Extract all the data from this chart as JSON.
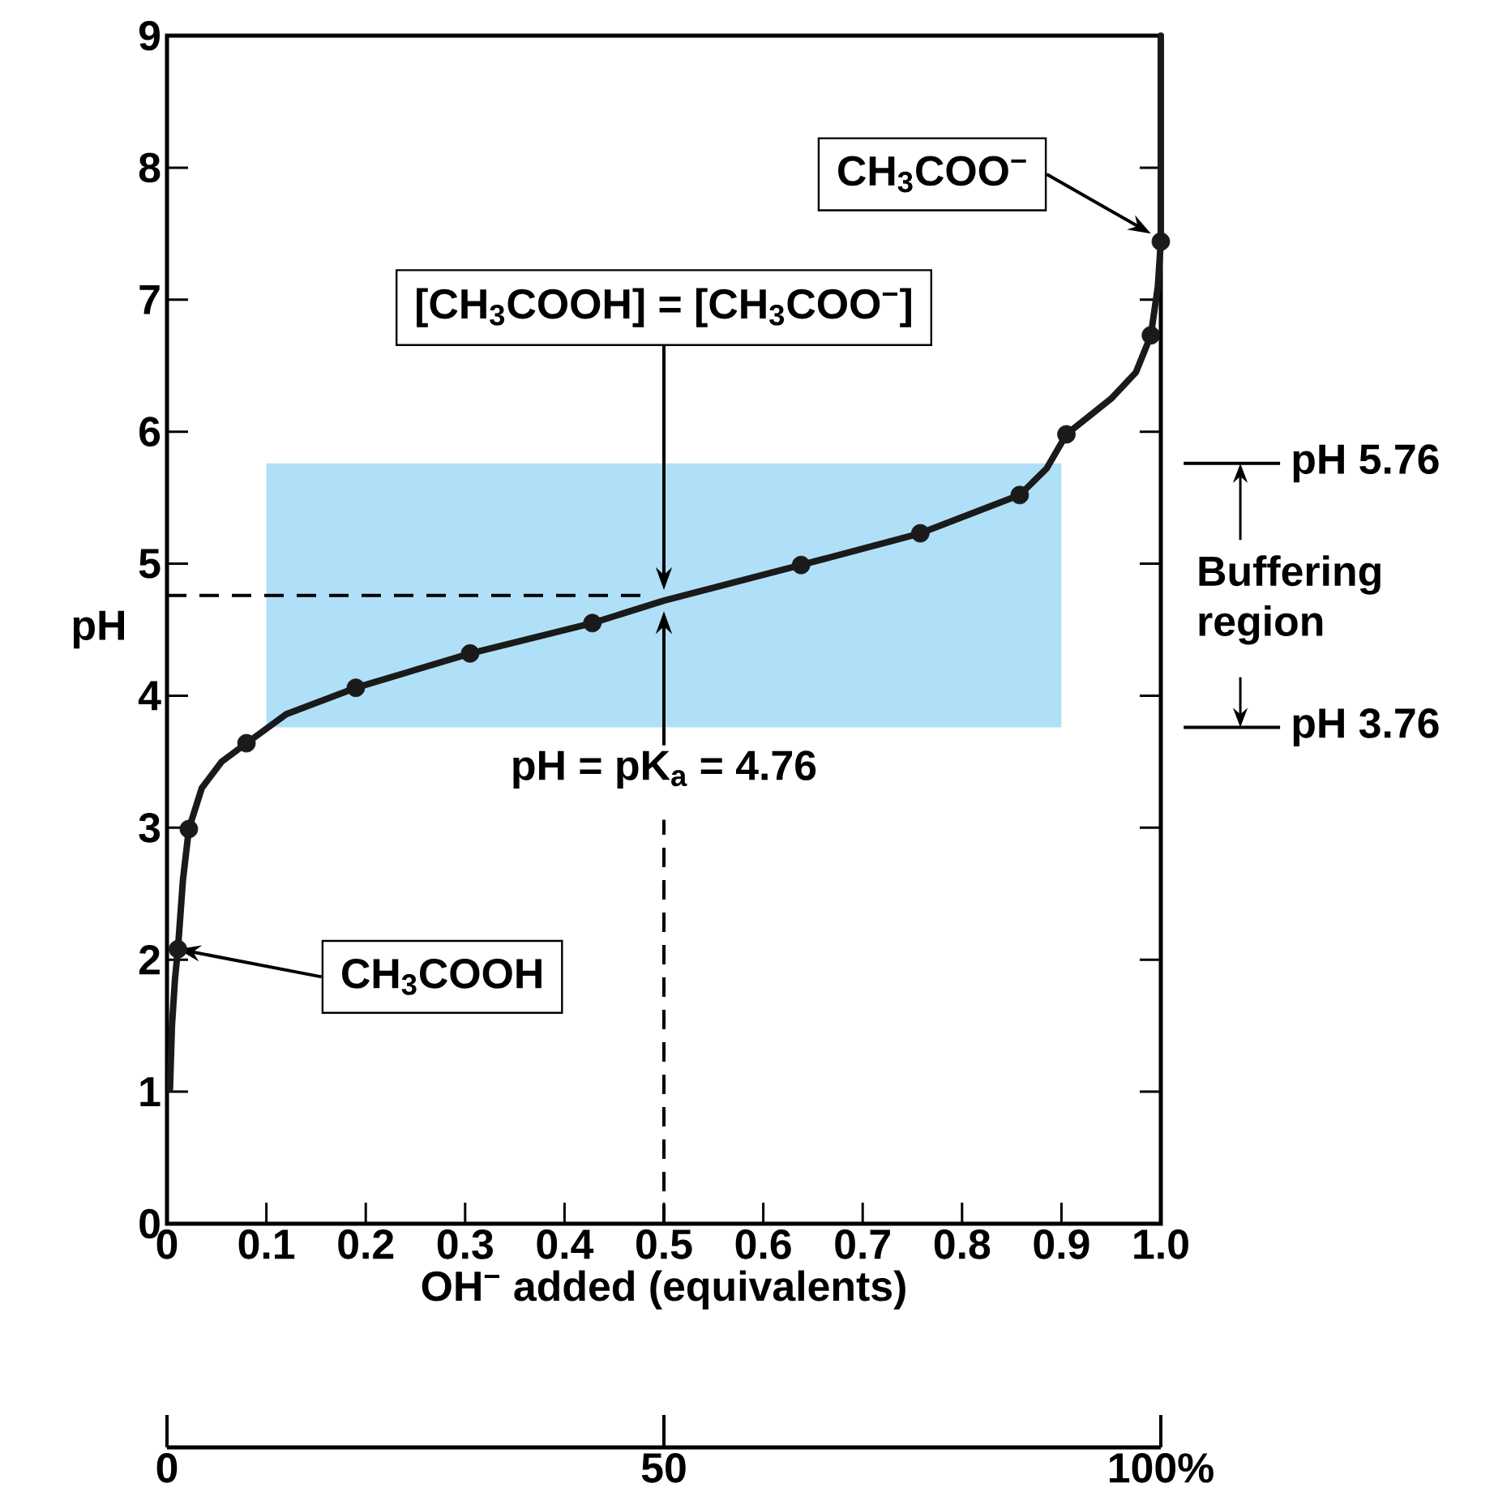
{
  "chart_data": {
    "type": "line",
    "xlabel": "OH$^{−}$ added (equivalents)",
    "ylabel": "pH",
    "xlim": [
      0,
      1
    ],
    "xticks": [
      0,
      0.1,
      0.2,
      0.3,
      0.4,
      0.5,
      0.6,
      0.7,
      0.8,
      0.9,
      {
        "value": 1,
        "label": "1.0"
      }
    ],
    "ylim": [
      0,
      9
    ],
    "yticks": [
      0,
      1,
      2,
      3,
      4,
      5,
      6,
      7,
      8,
      9
    ],
    "x2lim": [
      0,
      100
    ],
    "x2ticks": [
      0,
      50,
      {
        "value": 100,
        "label": "100%"
      }
    ],
    "series": [
      {
        "color": "#1a1a1a",
        "marker": "none",
        "x": [
          0.003,
          0.005,
          0.008,
          0.011,
          0.016,
          0.022,
          0.035,
          0.055,
          0.08,
          0.12,
          0.19,
          0.305,
          0.428,
          0.5,
          0.638,
          0.758,
          0.858,
          0.885,
          0.905,
          0.95,
          0.975,
          0.99,
          0.997,
          1.0,
          1.0
        ],
        "values": [
          1.02,
          1.5,
          1.85,
          2.08,
          2.6,
          2.99,
          3.3,
          3.5,
          3.64,
          3.86,
          4.06,
          4.32,
          4.55,
          4.72,
          4.99,
          5.23,
          5.52,
          5.72,
          5.98,
          6.25,
          6.45,
          6.73,
          7.1,
          7.44,
          9.0
        ]
      },
      {
        "type": "scatter",
        "color": "#1a1a1a",
        "marker": "circle",
        "x": [
          0.011,
          0.022,
          0.08,
          0.19,
          0.305,
          0.428,
          0.638,
          0.758,
          0.858,
          0.905,
          0.99,
          1.0
        ],
        "values": [
          2.08,
          2.99,
          3.64,
          4.06,
          4.32,
          4.55,
          4.99,
          5.23,
          5.52,
          5.98,
          6.73,
          7.44
        ]
      }
    ],
    "bands": [
      {
        "axis": "y",
        "from": 3.76,
        "to": 5.76,
        "color": "#b0e0f8"
      }
    ],
    "ref_lines": [
      {
        "axis": "y",
        "value": 5.76,
        "label": "pH 5.76"
      },
      {
        "axis": "y",
        "value": 3.76,
        "label": "pH 3.76"
      },
      {
        "axis": "y",
        "value": 4.76,
        "line_style": "dashed"
      },
      {
        "axis": "x",
        "value": 0.5,
        "line_style": "dashed"
      }
    ],
    "annotations": [
      {
        "text": "[CH$_{3}$COOH] = [CH$_{3}$COO$^{−}$]",
        "x": 0.5,
        "y": 4.8
      },
      {
        "text": "pH = pK$_{a}$ = 4.76",
        "x": 0.5,
        "y": 4.64
      },
      {
        "text": "CH$_{3}$COO$^{−}$",
        "x": 0.99,
        "y": 7.5
      },
      {
        "text": "CH$_{3}$COOH",
        "x": 0.011,
        "y": 2.08
      },
      "Buffering region"
    ]
  }
}
